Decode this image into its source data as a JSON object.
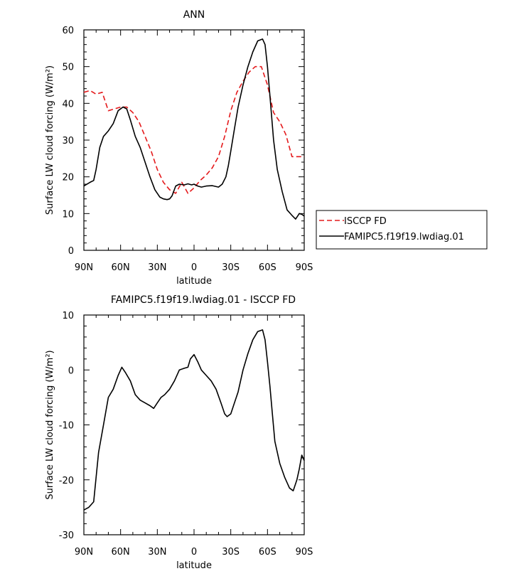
{
  "chart_data": [
    {
      "type": "line",
      "title": "ANN",
      "xlabel": "latitude",
      "ylabel": "Surface LW cloud forcing (W/m²)",
      "xlim": [
        90,
        -90
      ],
      "ylim": [
        0,
        60
      ],
      "x_ticks": [
        90,
        60,
        30,
        0,
        -30,
        -60,
        -90
      ],
      "x_tick_labels": [
        "90N",
        "60N",
        "30N",
        "0",
        "30S",
        "60S",
        "90S"
      ],
      "y_ticks": [
        0,
        10,
        20,
        30,
        40,
        50,
        60
      ],
      "y_tick_labels": [
        "0",
        "10",
        "20",
        "30",
        "40",
        "50",
        "60"
      ],
      "grid": false,
      "legend": "right",
      "series": [
        {
          "name": "ISCCP FD",
          "color": "#e41a1c",
          "style": "dashed",
          "x": [
            90,
            85,
            80,
            75,
            70,
            65,
            60,
            55,
            50,
            45,
            40,
            35,
            30,
            25,
            20,
            15,
            10,
            5,
            0,
            -5,
            -10,
            -15,
            -20,
            -25,
            -30,
            -35,
            -40,
            -45,
            -50,
            -55,
            -60,
            -65,
            -70,
            -75,
            -80,
            -85,
            -90
          ],
          "y": [
            43,
            43.5,
            42.5,
            43,
            38,
            38.5,
            39,
            39,
            37.5,
            35,
            31,
            27,
            22,
            18.5,
            16.5,
            15.5,
            18.5,
            15.5,
            17,
            19,
            20.5,
            22.5,
            25.5,
            31,
            38,
            43,
            46,
            48.5,
            50,
            50,
            45,
            37.5,
            35,
            31.5,
            25.5,
            25.5,
            25.5
          ]
        },
        {
          "name": "FAMIPC5.f19f19.lwdiag.01",
          "color": "#000000",
          "style": "solid",
          "x": [
            90,
            85,
            82,
            80,
            77,
            74,
            70,
            66,
            62,
            58,
            55,
            52,
            48,
            44,
            40,
            36,
            32,
            28,
            25,
            22,
            20,
            18,
            15,
            12,
            8,
            5,
            2,
            0,
            -3,
            -6,
            -10,
            -15,
            -20,
            -23,
            -26,
            -28,
            -30,
            -33,
            -36,
            -40,
            -44,
            -48,
            -52,
            -56,
            -58,
            -60,
            -62,
            -65,
            -68,
            -72,
            -76,
            -80,
            -83,
            -86,
            -88,
            -90
          ],
          "y": [
            17.5,
            18.5,
            19,
            22,
            28,
            31,
            32.5,
            34.5,
            38,
            39,
            38.5,
            35.5,
            31,
            28,
            24,
            20,
            16.5,
            14.5,
            14,
            13.8,
            14,
            14.8,
            17.5,
            18,
            17.8,
            18.1,
            17.8,
            18,
            17.5,
            17.2,
            17.5,
            17.6,
            17.2,
            18,
            20,
            23,
            27,
            33,
            39,
            45,
            50,
            54,
            57,
            57.5,
            56,
            50,
            42,
            30,
            22,
            16,
            11,
            9.5,
            8.5,
            10,
            9.8,
            9.3
          ]
        }
      ]
    },
    {
      "type": "line",
      "title": "FAMIPC5.f19f19.lwdiag.01 - ISCCP FD",
      "xlabel": "latitude",
      "ylabel": "Surface LW cloud forcing (W/m²)",
      "xlim": [
        90,
        -90
      ],
      "ylim": [
        -30,
        10
      ],
      "x_ticks": [
        90,
        60,
        30,
        0,
        -30,
        -60,
        -90
      ],
      "x_tick_labels": [
        "90N",
        "60N",
        "30N",
        "0",
        "30S",
        "60S",
        "90S"
      ],
      "y_ticks": [
        -30,
        -20,
        -10,
        0,
        10
      ],
      "y_tick_labels": [
        "-30",
        "-20",
        "-10",
        "0",
        "10"
      ],
      "grid": false,
      "series": [
        {
          "color": "#000000",
          "style": "solid",
          "x": [
            90,
            86,
            82,
            78,
            74,
            70,
            66,
            62,
            59,
            56,
            52,
            48,
            44,
            40,
            36,
            33,
            30,
            27,
            24,
            20,
            16,
            12,
            8,
            5,
            3,
            0,
            -3,
            -6,
            -10,
            -14,
            -18,
            -22,
            -25,
            -27,
            -30,
            -33,
            -36,
            -40,
            -44,
            -48,
            -52,
            -56,
            -58,
            -60,
            -62,
            -64,
            -66,
            -70,
            -74,
            -78,
            -81,
            -84,
            -86,
            -88,
            -90
          ],
          "y": [
            -25.5,
            -25,
            -24,
            -15,
            -10,
            -5,
            -3.5,
            -1,
            0.5,
            -0.5,
            -2,
            -4.5,
            -5.5,
            -6,
            -6.5,
            -7,
            -6,
            -5,
            -4.5,
            -3.5,
            -2,
            0,
            0.3,
            0.5,
            2,
            2.8,
            1.5,
            0,
            -1,
            -2,
            -3.5,
            -6,
            -8,
            -8.5,
            -8,
            -6,
            -4,
            0,
            3,
            5.5,
            7,
            7.3,
            5.5,
            1.5,
            -3,
            -8,
            -13,
            -17,
            -19.5,
            -21.5,
            -22,
            -20,
            -18,
            -15.5,
            -16.5
          ]
        }
      ]
    }
  ]
}
